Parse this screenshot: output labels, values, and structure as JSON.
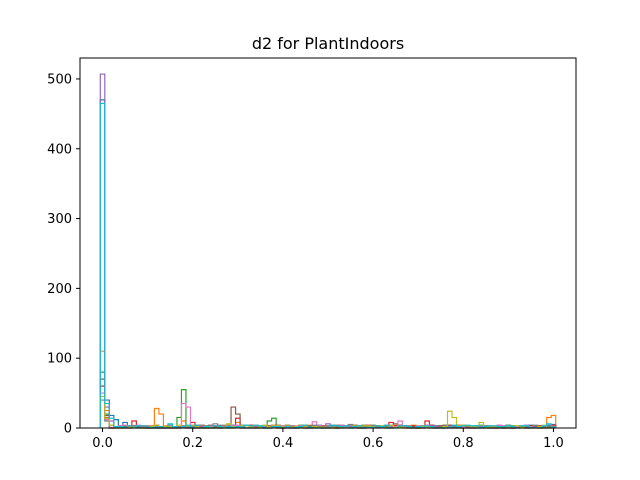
{
  "chart_data": {
    "type": "histogram-step",
    "title": "d2 for PlantIndoors",
    "xlabel": "",
    "ylabel": "",
    "xlim": [
      -0.05,
      1.05
    ],
    "ylim": [
      0,
      530
    ],
    "x_ticks": [
      0.0,
      0.2,
      0.4,
      0.6,
      0.8,
      1.0
    ],
    "x_tick_labels": [
      "0.0",
      "0.2",
      "0.4",
      "0.6",
      "0.8",
      "1.0"
    ],
    "y_ticks": [
      0,
      100,
      200,
      300,
      400,
      500
    ],
    "y_tick_labels": [
      "0",
      "100",
      "200",
      "300",
      "400",
      "500"
    ],
    "grid": false,
    "legend": "none",
    "bin_width": 0.01,
    "series": [
      {
        "color": "#1f77b4",
        "spikes": [
          [
            0.0,
            470
          ],
          [
            0.01,
            40
          ],
          [
            0.02,
            18
          ],
          [
            0.03,
            12
          ],
          [
            0.05,
            8
          ],
          [
            0.5,
            3
          ],
          [
            1.0,
            5
          ]
        ]
      },
      {
        "color": "#ff7f0e",
        "spikes": [
          [
            0.0,
            110
          ],
          [
            0.01,
            25
          ],
          [
            0.12,
            28
          ],
          [
            0.13,
            20
          ],
          [
            0.18,
            10
          ],
          [
            0.3,
            8
          ],
          [
            0.99,
            15
          ],
          [
            1.0,
            18
          ]
        ]
      },
      {
        "color": "#2ca02c",
        "spikes": [
          [
            0.0,
            80
          ],
          [
            0.01,
            20
          ],
          [
            0.18,
            55
          ],
          [
            0.17,
            15
          ],
          [
            0.38,
            14
          ],
          [
            0.37,
            10
          ],
          [
            0.6,
            4
          ]
        ]
      },
      {
        "color": "#d62728",
        "spikes": [
          [
            0.0,
            60
          ],
          [
            0.01,
            15
          ],
          [
            0.07,
            10
          ],
          [
            0.2,
            8
          ],
          [
            0.3,
            14
          ],
          [
            0.64,
            8
          ],
          [
            0.72,
            10
          ]
        ]
      },
      {
        "color": "#9467bd",
        "spikes": [
          [
            0.0,
            507
          ],
          [
            0.01,
            30
          ],
          [
            0.02,
            10
          ],
          [
            0.5,
            6
          ],
          [
            0.8,
            4
          ]
        ]
      },
      {
        "color": "#8c564b",
        "spikes": [
          [
            0.0,
            70
          ],
          [
            0.01,
            18
          ],
          [
            0.29,
            30
          ],
          [
            0.3,
            20
          ],
          [
            0.65,
            6
          ]
        ]
      },
      {
        "color": "#e377c2",
        "spikes": [
          [
            0.0,
            50
          ],
          [
            0.01,
            12
          ],
          [
            0.18,
            35
          ],
          [
            0.19,
            30
          ],
          [
            0.47,
            9
          ],
          [
            0.66,
            10
          ]
        ]
      },
      {
        "color": "#7f7f7f",
        "spikes": [
          [
            0.0,
            40
          ],
          [
            0.01,
            10
          ],
          [
            0.25,
            6
          ],
          [
            0.55,
            5
          ],
          [
            0.9,
            4
          ]
        ]
      },
      {
        "color": "#bcbd22",
        "spikes": [
          [
            0.0,
            45
          ],
          [
            0.01,
            14
          ],
          [
            0.77,
            24
          ],
          [
            0.78,
            15
          ],
          [
            0.84,
            8
          ],
          [
            0.28,
            6
          ]
        ]
      },
      {
        "color": "#17becf",
        "spikes": [
          [
            0.0,
            465
          ],
          [
            0.01,
            35
          ],
          [
            0.02,
            14
          ],
          [
            0.15,
            6
          ],
          [
            0.45,
            4
          ],
          [
            0.99,
            6
          ]
        ]
      }
    ]
  }
}
